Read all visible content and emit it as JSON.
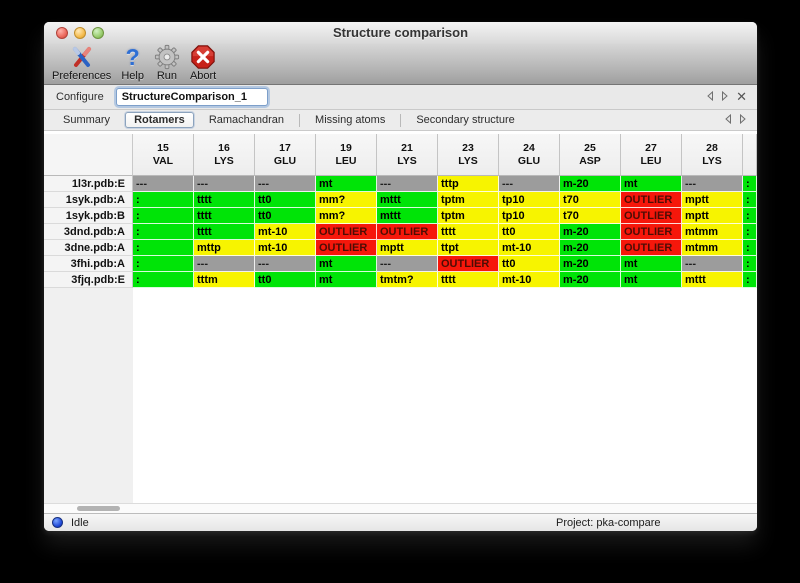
{
  "window": {
    "title": "Structure comparison"
  },
  "toolbar": {
    "items": [
      {
        "label": "Preferences",
        "icon": "tools-icon"
      },
      {
        "label": "Help",
        "icon": "help-icon",
        "glyph": "?"
      },
      {
        "label": "Run",
        "icon": "gear-icon"
      },
      {
        "label": "Abort",
        "icon": "abort-icon"
      }
    ]
  },
  "configure": {
    "label": "Configure",
    "value": "StructureComparison_1"
  },
  "tabs": {
    "items": [
      "Summary",
      "Rotamers",
      "Ramachandran",
      "Missing atoms",
      "Secondary structure"
    ],
    "selected": "Rotamers"
  },
  "colors": {
    "green": "#00e407",
    "yellow": "#f7f400",
    "red": "#f6170b",
    "gray": "#9c9c9c"
  },
  "table": {
    "columns": [
      {
        "num": "15",
        "res": "VAL"
      },
      {
        "num": "16",
        "res": "LYS"
      },
      {
        "num": "17",
        "res": "GLU"
      },
      {
        "num": "19",
        "res": "LEU"
      },
      {
        "num": "21",
        "res": "LYS"
      },
      {
        "num": "23",
        "res": "LYS"
      },
      {
        "num": "24",
        "res": "GLU"
      },
      {
        "num": "25",
        "res": "ASP"
      },
      {
        "num": "27",
        "res": "LEU"
      },
      {
        "num": "28",
        "res": "LYS"
      }
    ],
    "rows": [
      {
        "name": "1l3r.pdb:E",
        "cells": [
          {
            "t": "---",
            "c": "n"
          },
          {
            "t": "---",
            "c": "n"
          },
          {
            "t": "---",
            "c": "n"
          },
          {
            "t": "mt",
            "c": "g"
          },
          {
            "t": "---",
            "c": "n"
          },
          {
            "t": "tttp",
            "c": "y"
          },
          {
            "t": "---",
            "c": "n"
          },
          {
            "t": "m-20",
            "c": "g"
          },
          {
            "t": "mt",
            "c": "g"
          },
          {
            "t": "---",
            "c": "n"
          }
        ],
        "overflow": {
          "t": ":",
          "c": "g"
        }
      },
      {
        "name": "1syk.pdb:A",
        "cells": [
          {
            "t": ":",
            "c": "g"
          },
          {
            "t": "tttt",
            "c": "g"
          },
          {
            "t": "tt0",
            "c": "g"
          },
          {
            "t": "mm?",
            "c": "y"
          },
          {
            "t": "mttt",
            "c": "g"
          },
          {
            "t": "tptm",
            "c": "y"
          },
          {
            "t": "tp10",
            "c": "y"
          },
          {
            "t": "t70",
            "c": "y"
          },
          {
            "t": "OUTLIER",
            "c": "r"
          },
          {
            "t": "mptt",
            "c": "y"
          }
        ],
        "overflow": {
          "t": ":",
          "c": "g"
        }
      },
      {
        "name": "1syk.pdb:B",
        "cells": [
          {
            "t": ":",
            "c": "g"
          },
          {
            "t": "tttt",
            "c": "g"
          },
          {
            "t": "tt0",
            "c": "g"
          },
          {
            "t": "mm?",
            "c": "y"
          },
          {
            "t": "mttt",
            "c": "g"
          },
          {
            "t": "tptm",
            "c": "y"
          },
          {
            "t": "tp10",
            "c": "y"
          },
          {
            "t": "t70",
            "c": "y"
          },
          {
            "t": "OUTLIER",
            "c": "r"
          },
          {
            "t": "mptt",
            "c": "y"
          }
        ],
        "overflow": {
          "t": ":",
          "c": "g"
        }
      },
      {
        "name": "3dnd.pdb:A",
        "cells": [
          {
            "t": ":",
            "c": "g"
          },
          {
            "t": "tttt",
            "c": "g"
          },
          {
            "t": "mt-10",
            "c": "y"
          },
          {
            "t": "OUTLIER",
            "c": "r"
          },
          {
            "t": "OUTLIER",
            "c": "r"
          },
          {
            "t": "tttt",
            "c": "y"
          },
          {
            "t": "tt0",
            "c": "y"
          },
          {
            "t": "m-20",
            "c": "g"
          },
          {
            "t": "OUTLIER",
            "c": "r"
          },
          {
            "t": "mtmm",
            "c": "y"
          }
        ],
        "overflow": {
          "t": ":",
          "c": "g"
        }
      },
      {
        "name": "3dne.pdb:A",
        "cells": [
          {
            "t": ":",
            "c": "g"
          },
          {
            "t": "mttp",
            "c": "y"
          },
          {
            "t": "mt-10",
            "c": "y"
          },
          {
            "t": "OUTLIER",
            "c": "r"
          },
          {
            "t": "mptt",
            "c": "y"
          },
          {
            "t": "ttpt",
            "c": "y"
          },
          {
            "t": "mt-10",
            "c": "y"
          },
          {
            "t": "m-20",
            "c": "g"
          },
          {
            "t": "OUTLIER",
            "c": "r"
          },
          {
            "t": "mtmm",
            "c": "y"
          }
        ],
        "overflow": {
          "t": ":",
          "c": "g"
        }
      },
      {
        "name": "3fhi.pdb:A",
        "cells": [
          {
            "t": ":",
            "c": "g"
          },
          {
            "t": "---",
            "c": "n"
          },
          {
            "t": "---",
            "c": "n"
          },
          {
            "t": "mt",
            "c": "g"
          },
          {
            "t": "---",
            "c": "n"
          },
          {
            "t": "OUTLIER",
            "c": "r"
          },
          {
            "t": "tt0",
            "c": "y"
          },
          {
            "t": "m-20",
            "c": "g"
          },
          {
            "t": "mt",
            "c": "g"
          },
          {
            "t": "---",
            "c": "n"
          }
        ],
        "overflow": {
          "t": ":",
          "c": "g"
        }
      },
      {
        "name": "3fjq.pdb:E",
        "cells": [
          {
            "t": ":",
            "c": "g"
          },
          {
            "t": "tttm",
            "c": "y"
          },
          {
            "t": "tt0",
            "c": "g"
          },
          {
            "t": "mt",
            "c": "g"
          },
          {
            "t": "tmtm?",
            "c": "y"
          },
          {
            "t": "tttt",
            "c": "y"
          },
          {
            "t": "mt-10",
            "c": "y"
          },
          {
            "t": "m-20",
            "c": "g"
          },
          {
            "t": "mt",
            "c": "g"
          },
          {
            "t": "mttt",
            "c": "y"
          }
        ],
        "overflow": {
          "t": ":",
          "c": "g"
        }
      }
    ]
  },
  "statusbar": {
    "status": "Idle",
    "project": "Project: pka-compare"
  }
}
